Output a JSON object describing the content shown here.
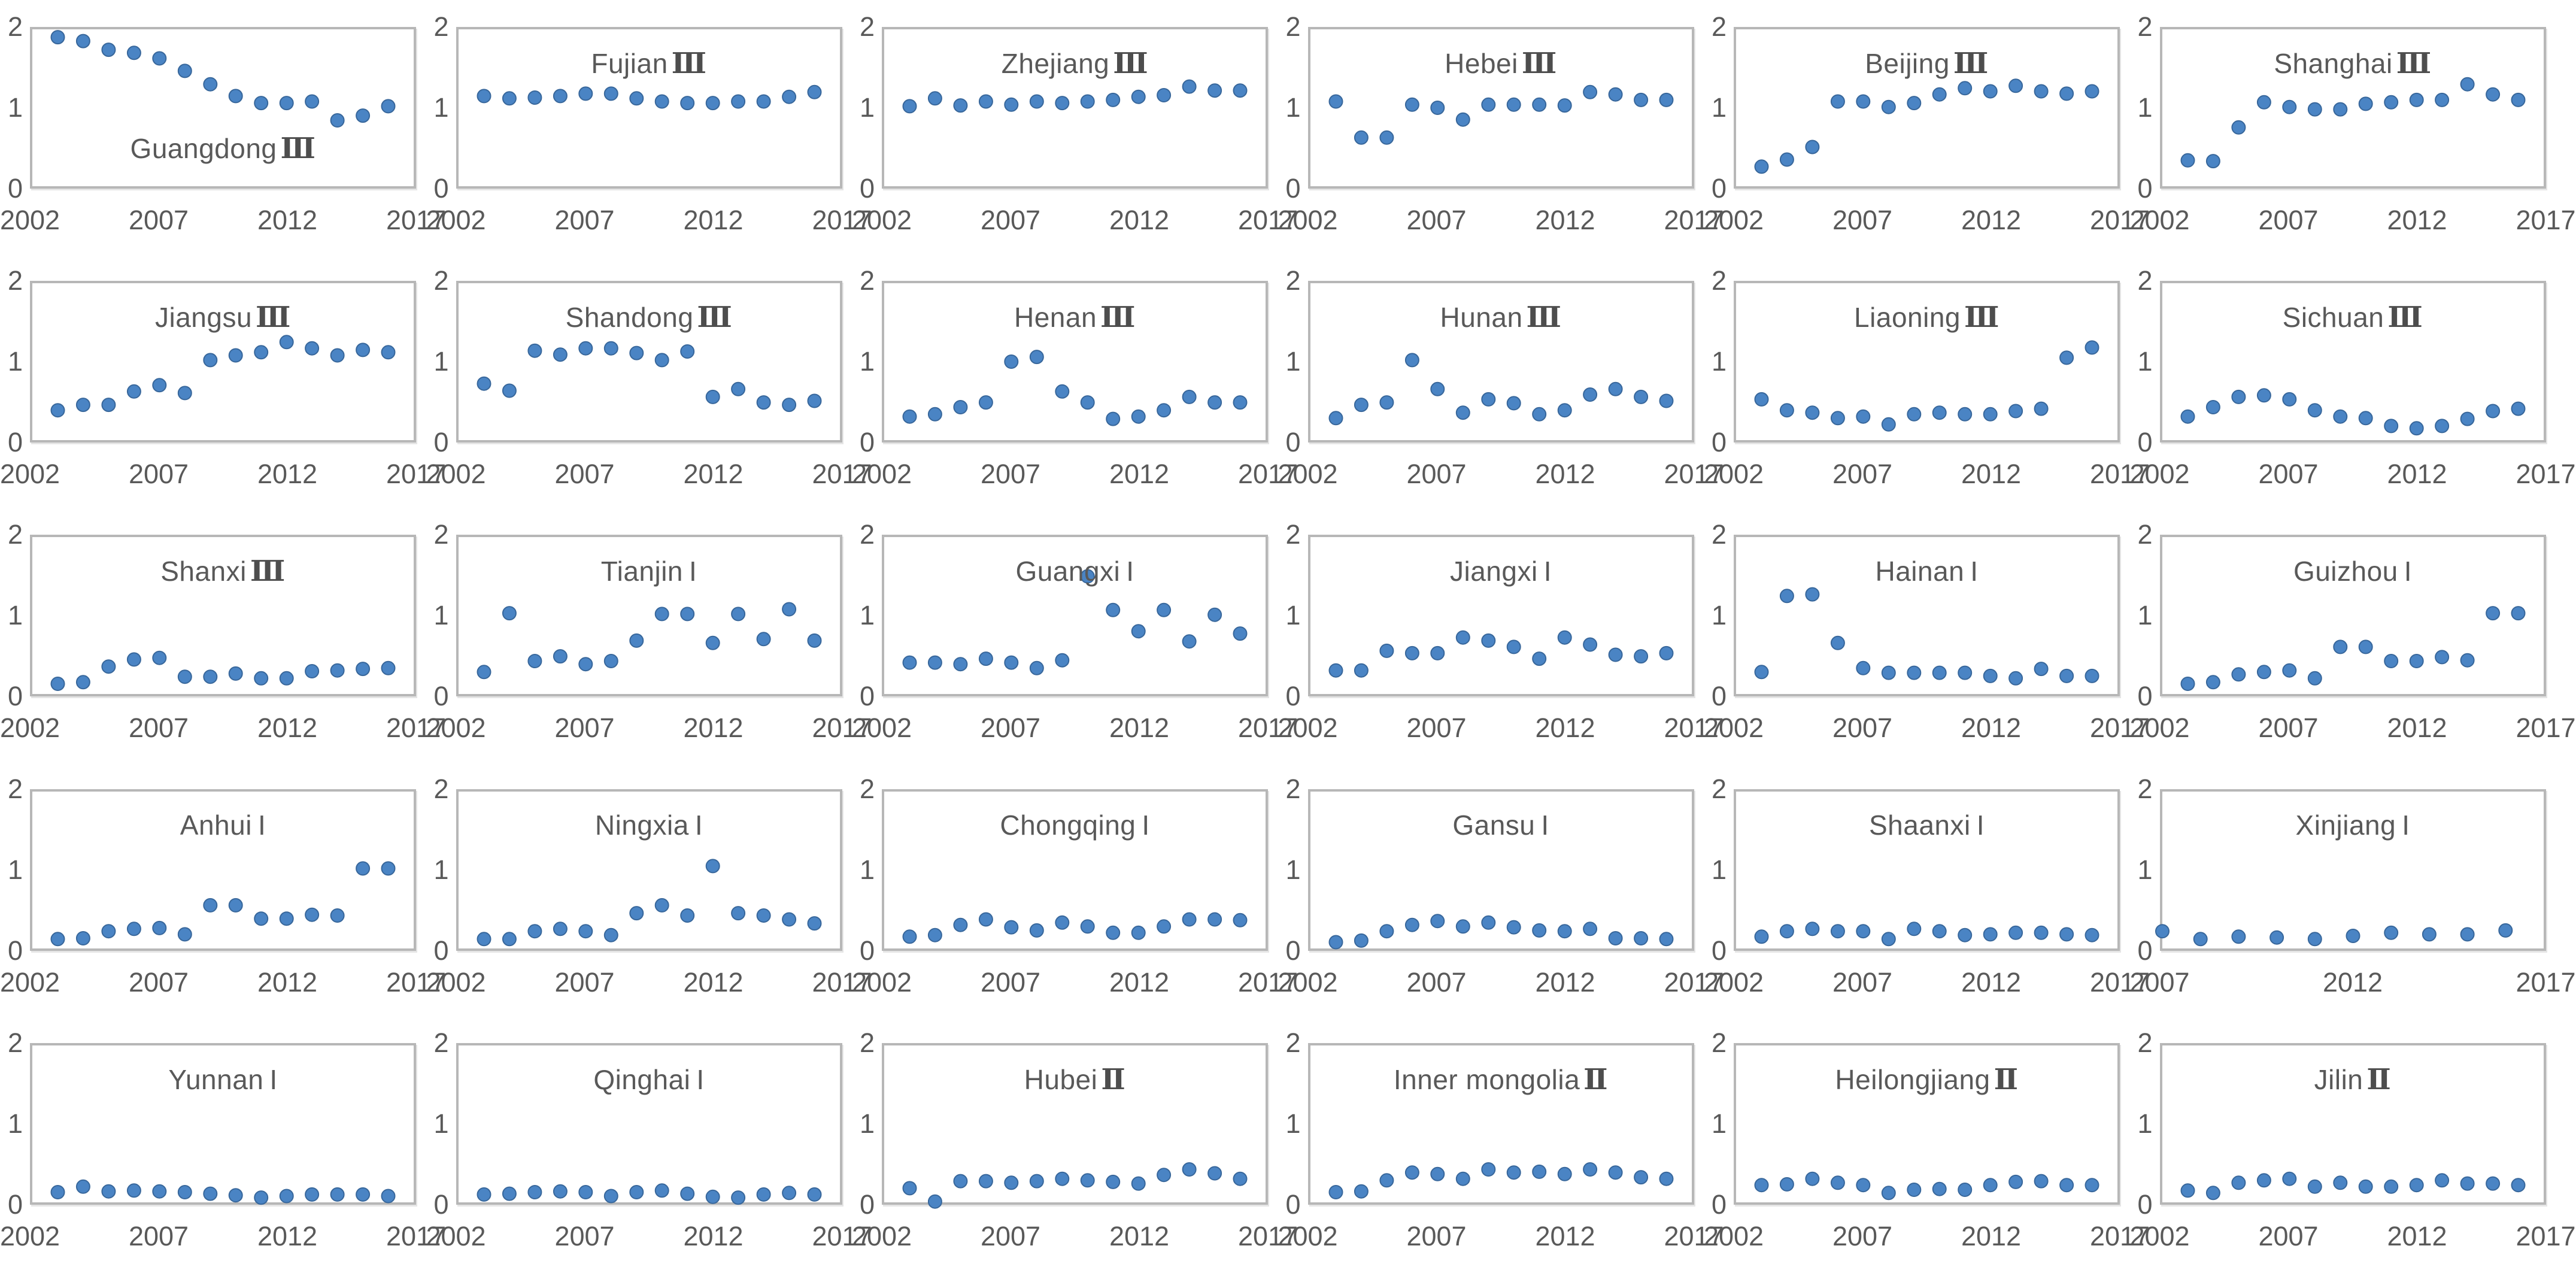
{
  "page": {
    "background": "#ffffff"
  },
  "styles": {
    "dot_color": "#4a84c4",
    "dot_edge": "#38679b",
    "frame_border": "#b7b7b7",
    "text_color": "#595959"
  },
  "chart_data": {
    "type": "scatter",
    "ylim": [
      0,
      2
    ],
    "y_ticks": [
      "2",
      "1",
      "0"
    ],
    "default_x_ticks": [
      2002,
      2007,
      2012,
      2017
    ],
    "default_xmin": 2002,
    "default_xmax": 2017,
    "default_years": [
      2003,
      2004,
      2005,
      2006,
      2007,
      2008,
      2009,
      2010,
      2011,
      2012,
      2013,
      2014,
      2015,
      2016
    ],
    "charts": [
      {
        "name": "Guangdong",
        "numeral": "Ⅲ",
        "title_level": 0.5,
        "values": [
          1.9,
          1.85,
          1.74,
          1.7,
          1.63,
          1.47,
          1.3,
          1.15,
          1.06,
          1.06,
          1.08,
          0.84,
          0.9,
          1.02
        ]
      },
      {
        "name": "Fujian",
        "numeral": "Ⅲ",
        "title_level": 1.55,
        "values": [
          1.15,
          1.12,
          1.13,
          1.15,
          1.18,
          1.18,
          1.12,
          1.08,
          1.06,
          1.06,
          1.08,
          1.08,
          1.14,
          1.2
        ]
      },
      {
        "name": "Zhejiang",
        "numeral": "Ⅲ",
        "title_level": 1.55,
        "values": [
          1.02,
          1.12,
          1.03,
          1.08,
          1.04,
          1.08,
          1.06,
          1.08,
          1.1,
          1.14,
          1.16,
          1.27,
          1.22,
          1.22
        ]
      },
      {
        "name": "Hebei",
        "numeral": "Ⅲ",
        "title_level": 1.55,
        "values": [
          1.08,
          0.62,
          0.62,
          1.04,
          1.0,
          0.85,
          1.04,
          1.04,
          1.04,
          1.03,
          1.2,
          1.17,
          1.1,
          1.1
        ]
      },
      {
        "name": "Beijing",
        "numeral": "Ⅲ",
        "title_level": 1.55,
        "values": [
          0.25,
          0.34,
          0.5,
          1.08,
          1.08,
          1.01,
          1.06,
          1.17,
          1.25,
          1.21,
          1.28,
          1.21,
          1.18,
          1.21
        ]
      },
      {
        "name": "Shanghai",
        "numeral": "Ⅲ",
        "title_level": 1.55,
        "values": [
          0.33,
          0.32,
          0.75,
          1.07,
          1.01,
          0.98,
          0.98,
          1.05,
          1.07,
          1.1,
          1.1,
          1.3,
          1.17,
          1.1
        ]
      },
      {
        "name": "Jiangsu",
        "numeral": "Ⅲ",
        "title_level": 1.55,
        "values": [
          0.38,
          0.45,
          0.45,
          0.62,
          0.7,
          0.6,
          1.02,
          1.08,
          1.12,
          1.25,
          1.17,
          1.08,
          1.15,
          1.12
        ]
      },
      {
        "name": "Shandong",
        "numeral": "Ⅲ",
        "title_level": 1.55,
        "values": [
          0.72,
          0.63,
          1.14,
          1.09,
          1.17,
          1.17,
          1.11,
          1.02,
          1.13,
          0.55,
          0.65,
          0.48,
          0.45,
          0.5
        ]
      },
      {
        "name": "Henan",
        "numeral": "Ⅲ",
        "title_level": 1.55,
        "values": [
          0.3,
          0.33,
          0.42,
          0.48,
          1.0,
          1.06,
          0.62,
          0.48,
          0.27,
          0.3,
          0.38,
          0.55,
          0.48,
          0.48
        ]
      },
      {
        "name": "Hunan",
        "numeral": "Ⅲ",
        "title_level": 1.55,
        "values": [
          0.28,
          0.45,
          0.48,
          1.02,
          0.65,
          0.35,
          0.52,
          0.47,
          0.33,
          0.38,
          0.58,
          0.65,
          0.55,
          0.5
        ]
      },
      {
        "name": "Liaoning",
        "numeral": "Ⅲ",
        "title_level": 1.55,
        "values": [
          0.52,
          0.38,
          0.35,
          0.28,
          0.3,
          0.2,
          0.33,
          0.35,
          0.33,
          0.33,
          0.37,
          0.4,
          1.05,
          1.18
        ]
      },
      {
        "name": "Sichuan",
        "numeral": "Ⅲ",
        "title_level": 1.55,
        "values": [
          0.3,
          0.42,
          0.55,
          0.57,
          0.52,
          0.38,
          0.3,
          0.28,
          0.18,
          0.15,
          0.18,
          0.27,
          0.37,
          0.4
        ]
      },
      {
        "name": "Shanxi",
        "numeral": "Ⅲ",
        "title_level": 1.55,
        "values": [
          0.13,
          0.15,
          0.35,
          0.44,
          0.46,
          0.22,
          0.22,
          0.26,
          0.2,
          0.2,
          0.29,
          0.3,
          0.32,
          0.33
        ]
      },
      {
        "name": "Tianjin",
        "numeral": "I",
        "title_level": 1.55,
        "values": [
          0.28,
          1.03,
          0.42,
          0.48,
          0.38,
          0.42,
          0.68,
          1.02,
          1.02,
          0.65,
          1.02,
          0.7,
          1.08,
          0.68
        ]
      },
      {
        "name": "Guangxi",
        "numeral": "I",
        "title_level": 1.55,
        "values": [
          0.4,
          0.4,
          0.38,
          0.45,
          0.4,
          0.33,
          0.43,
          1.5,
          1.07,
          0.8,
          1.07,
          0.67,
          1.01,
          0.77
        ]
      },
      {
        "name": "Jiangxi",
        "numeral": "I",
        "title_level": 1.55,
        "values": [
          0.3,
          0.3,
          0.55,
          0.52,
          0.52,
          0.72,
          0.68,
          0.6,
          0.45,
          0.72,
          0.63,
          0.5,
          0.48,
          0.52
        ]
      },
      {
        "name": "Hainan",
        "numeral": "I",
        "title_level": 1.55,
        "values": [
          0.28,
          1.25,
          1.27,
          0.65,
          0.33,
          0.27,
          0.27,
          0.27,
          0.27,
          0.23,
          0.2,
          0.32,
          0.23,
          0.23
        ]
      },
      {
        "name": "Guizhou",
        "numeral": "I",
        "title_level": 1.55,
        "values": [
          0.13,
          0.15,
          0.25,
          0.28,
          0.3,
          0.2,
          0.6,
          0.6,
          0.42,
          0.42,
          0.47,
          0.43,
          1.03,
          1.03
        ]
      },
      {
        "name": "Anhui",
        "numeral": "I",
        "title_level": 1.55,
        "values": [
          0.12,
          0.13,
          0.22,
          0.25,
          0.26,
          0.18,
          0.55,
          0.55,
          0.38,
          0.38,
          0.43,
          0.42,
          1.02,
          1.02
        ]
      },
      {
        "name": "Ningxia",
        "numeral": "I",
        "title_level": 1.55,
        "values": [
          0.12,
          0.12,
          0.22,
          0.25,
          0.22,
          0.17,
          0.45,
          0.55,
          0.42,
          1.05,
          0.45,
          0.42,
          0.37,
          0.32
        ]
      },
      {
        "name": "Chongqing",
        "numeral": "I",
        "title_level": 1.55,
        "values": [
          0.15,
          0.17,
          0.3,
          0.37,
          0.27,
          0.23,
          0.33,
          0.28,
          0.2,
          0.2,
          0.28,
          0.37,
          0.37,
          0.36
        ]
      },
      {
        "name": "Gansu",
        "numeral": "I",
        "title_level": 1.55,
        "values": [
          0.08,
          0.1,
          0.22,
          0.3,
          0.35,
          0.28,
          0.33,
          0.27,
          0.23,
          0.22,
          0.25,
          0.13,
          0.13,
          0.12
        ]
      },
      {
        "name": "Shaanxi",
        "numeral": "I",
        "title_level": 1.55,
        "values": [
          0.15,
          0.22,
          0.25,
          0.22,
          0.22,
          0.12,
          0.25,
          0.22,
          0.17,
          0.18,
          0.2,
          0.2,
          0.18,
          0.17
        ]
      },
      {
        "name": "Xinjiang",
        "numeral": "I",
        "title_level": 1.55,
        "xmin": 2007,
        "xmax": 2017,
        "x_ticks": [
          2007,
          2012,
          2017
        ],
        "years": [
          2007,
          2008,
          2009,
          2010,
          2011,
          2012,
          2013,
          2014,
          2015,
          2016
        ],
        "values": [
          0.22,
          0.12,
          0.15,
          0.14,
          0.12,
          0.16,
          0.2,
          0.18,
          0.18,
          0.23
        ]
      },
      {
        "name": "Yunnan",
        "numeral": "I",
        "title_level": 1.55,
        "values": [
          0.13,
          0.2,
          0.14,
          0.15,
          0.14,
          0.13,
          0.11,
          0.09,
          0.06,
          0.08,
          0.1,
          0.1,
          0.1,
          0.08
        ]
      },
      {
        "name": "Qinghai",
        "numeral": "I",
        "title_level": 1.55,
        "values": [
          0.1,
          0.11,
          0.13,
          0.14,
          0.13,
          0.08,
          0.13,
          0.15,
          0.11,
          0.07,
          0.06,
          0.1,
          0.12,
          0.1
        ]
      },
      {
        "name": "Hubei",
        "numeral": "Ⅱ",
        "title_level": 1.55,
        "values": [
          0.18,
          0.01,
          0.27,
          0.27,
          0.25,
          0.27,
          0.3,
          0.28,
          0.26,
          0.24,
          0.35,
          0.42,
          0.37,
          0.3
        ]
      },
      {
        "name": "Inner mongolia",
        "numeral": "Ⅱ",
        "title_level": 1.55,
        "values": [
          0.13,
          0.14,
          0.28,
          0.38,
          0.36,
          0.3,
          0.42,
          0.38,
          0.39,
          0.36,
          0.42,
          0.38,
          0.32,
          0.3
        ]
      },
      {
        "name": "Heilongjiang",
        "numeral": "Ⅱ",
        "title_level": 1.55,
        "values": [
          0.22,
          0.23,
          0.3,
          0.25,
          0.22,
          0.12,
          0.16,
          0.17,
          0.16,
          0.22,
          0.26,
          0.27,
          0.22,
          0.22
        ]
      },
      {
        "name": "Jilin",
        "numeral": "Ⅱ",
        "title_level": 1.55,
        "values": [
          0.15,
          0.12,
          0.25,
          0.28,
          0.3,
          0.2,
          0.25,
          0.2,
          0.2,
          0.22,
          0.28,
          0.24,
          0.24,
          0.22
        ]
      }
    ]
  }
}
